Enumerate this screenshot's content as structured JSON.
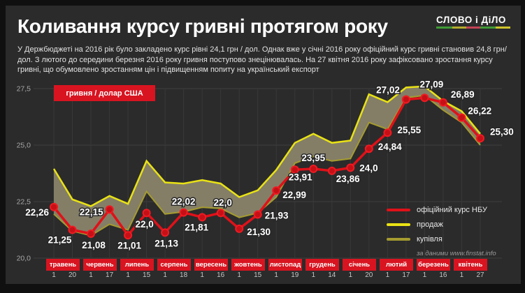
{
  "header": {
    "title": "Коливання курсу гривні протягом року",
    "logo_text": "СЛОВО і ДіЛО",
    "logo_colors": [
      "#3f9b35",
      "#b5aa2e",
      "#c44455",
      "#3f9b35",
      "#d0c52c"
    ],
    "description": "У Держбюджеті на 2016 рік було закладено курс рівні 24,1 грн / дол. Однак вже у січні 2016 року офіційний курс гривні становив 24,8 грн/дол. З лютого до середини березня 2016 року гривня поступово знецінювалась. На 27 квітня 2016 року зафіксовано зростання курсу гривні, що обумовлено зростанням цін і підвищенням попиту на український експорт"
  },
  "unit_label": "гривня / долар США",
  "legend": {
    "items": [
      {
        "label": "офіційний курс НБУ",
        "color": "#e01119"
      },
      {
        "label": "продаж",
        "color": "#e9e215"
      },
      {
        "label": "купівля",
        "color": "#a59b2f"
      }
    ],
    "source": "за даними www.finstat.info"
  },
  "chart_data": {
    "type": "line",
    "title": "гривня / долар США",
    "ylabel": "",
    "xlabel": "",
    "ylim": [
      20.0,
      28.3
    ],
    "grid": true,
    "legend_position": "right-center",
    "yticks": [
      27.5,
      25.0,
      22.5,
      20.0
    ],
    "ytick_labels": [
      "27,5",
      "25,0",
      "22,5",
      "20,0"
    ],
    "months": [
      {
        "label": "травень",
        "ticks": [
          "1",
          "20"
        ]
      },
      {
        "label": "червень",
        "ticks": [
          "1",
          "17"
        ]
      },
      {
        "label": "липень",
        "ticks": [
          "1",
          "15"
        ]
      },
      {
        "label": "серпень",
        "ticks": [
          "1",
          "18"
        ]
      },
      {
        "label": "вересень",
        "ticks": [
          "1",
          "16"
        ]
      },
      {
        "label": "жовтень",
        "ticks": [
          "1",
          "15"
        ]
      },
      {
        "label": "листопад",
        "ticks": [
          "1",
          "19"
        ]
      },
      {
        "label": "грудень",
        "ticks": [
          "1",
          "14"
        ]
      },
      {
        "label": "січень",
        "ticks": [
          "1",
          "20"
        ]
      },
      {
        "label": "лютий",
        "ticks": [
          "1",
          "17"
        ]
      },
      {
        "label": "березень",
        "ticks": [
          "1",
          "16"
        ]
      },
      {
        "label": "квітень",
        "ticks": [
          "1",
          "27"
        ]
      }
    ],
    "series": [
      {
        "name": "офіційний курс НБУ",
        "color": "#e01119",
        "values": [
          22.26,
          21.25,
          21.08,
          22.15,
          21.01,
          22.0,
          21.13,
          22.02,
          21.81,
          22.0,
          21.3,
          21.93,
          22.99,
          23.91,
          23.95,
          23.86,
          24.0,
          24.84,
          25.55,
          27.02,
          27.09,
          26.89,
          26.22,
          25.3
        ],
        "value_labels": [
          "22,26",
          "21,25",
          "21,08",
          "22,15",
          "21,01",
          "22,0",
          "21,13",
          "22,02",
          "21,81",
          "22,0",
          "21,30",
          "21,93",
          "22,99",
          "23,91",
          "23,95",
          "23,86",
          "24,0",
          "24,84",
          "25,55",
          "27,02",
          "27,09",
          "26,89",
          "26,22",
          "25,30"
        ]
      },
      {
        "name": "продаж",
        "color": "#e9e215",
        "values": [
          23.95,
          22.6,
          22.3,
          22.75,
          22.4,
          24.3,
          23.35,
          23.3,
          23.45,
          23.3,
          22.7,
          23.0,
          23.9,
          25.1,
          25.5,
          25.1,
          25.2,
          27.25,
          26.9,
          27.55,
          27.6,
          26.95,
          26.5,
          25.5
        ]
      },
      {
        "name": "купівля",
        "color": "#a59b2f",
        "values": [
          21.95,
          21.2,
          21.0,
          21.5,
          21.25,
          22.95,
          21.95,
          22.05,
          22.25,
          22.2,
          21.8,
          22.0,
          22.7,
          24.2,
          24.5,
          24.3,
          24.4,
          26.0,
          25.7,
          27.1,
          27.2,
          26.55,
          26.0,
          25.0
        ]
      }
    ]
  }
}
